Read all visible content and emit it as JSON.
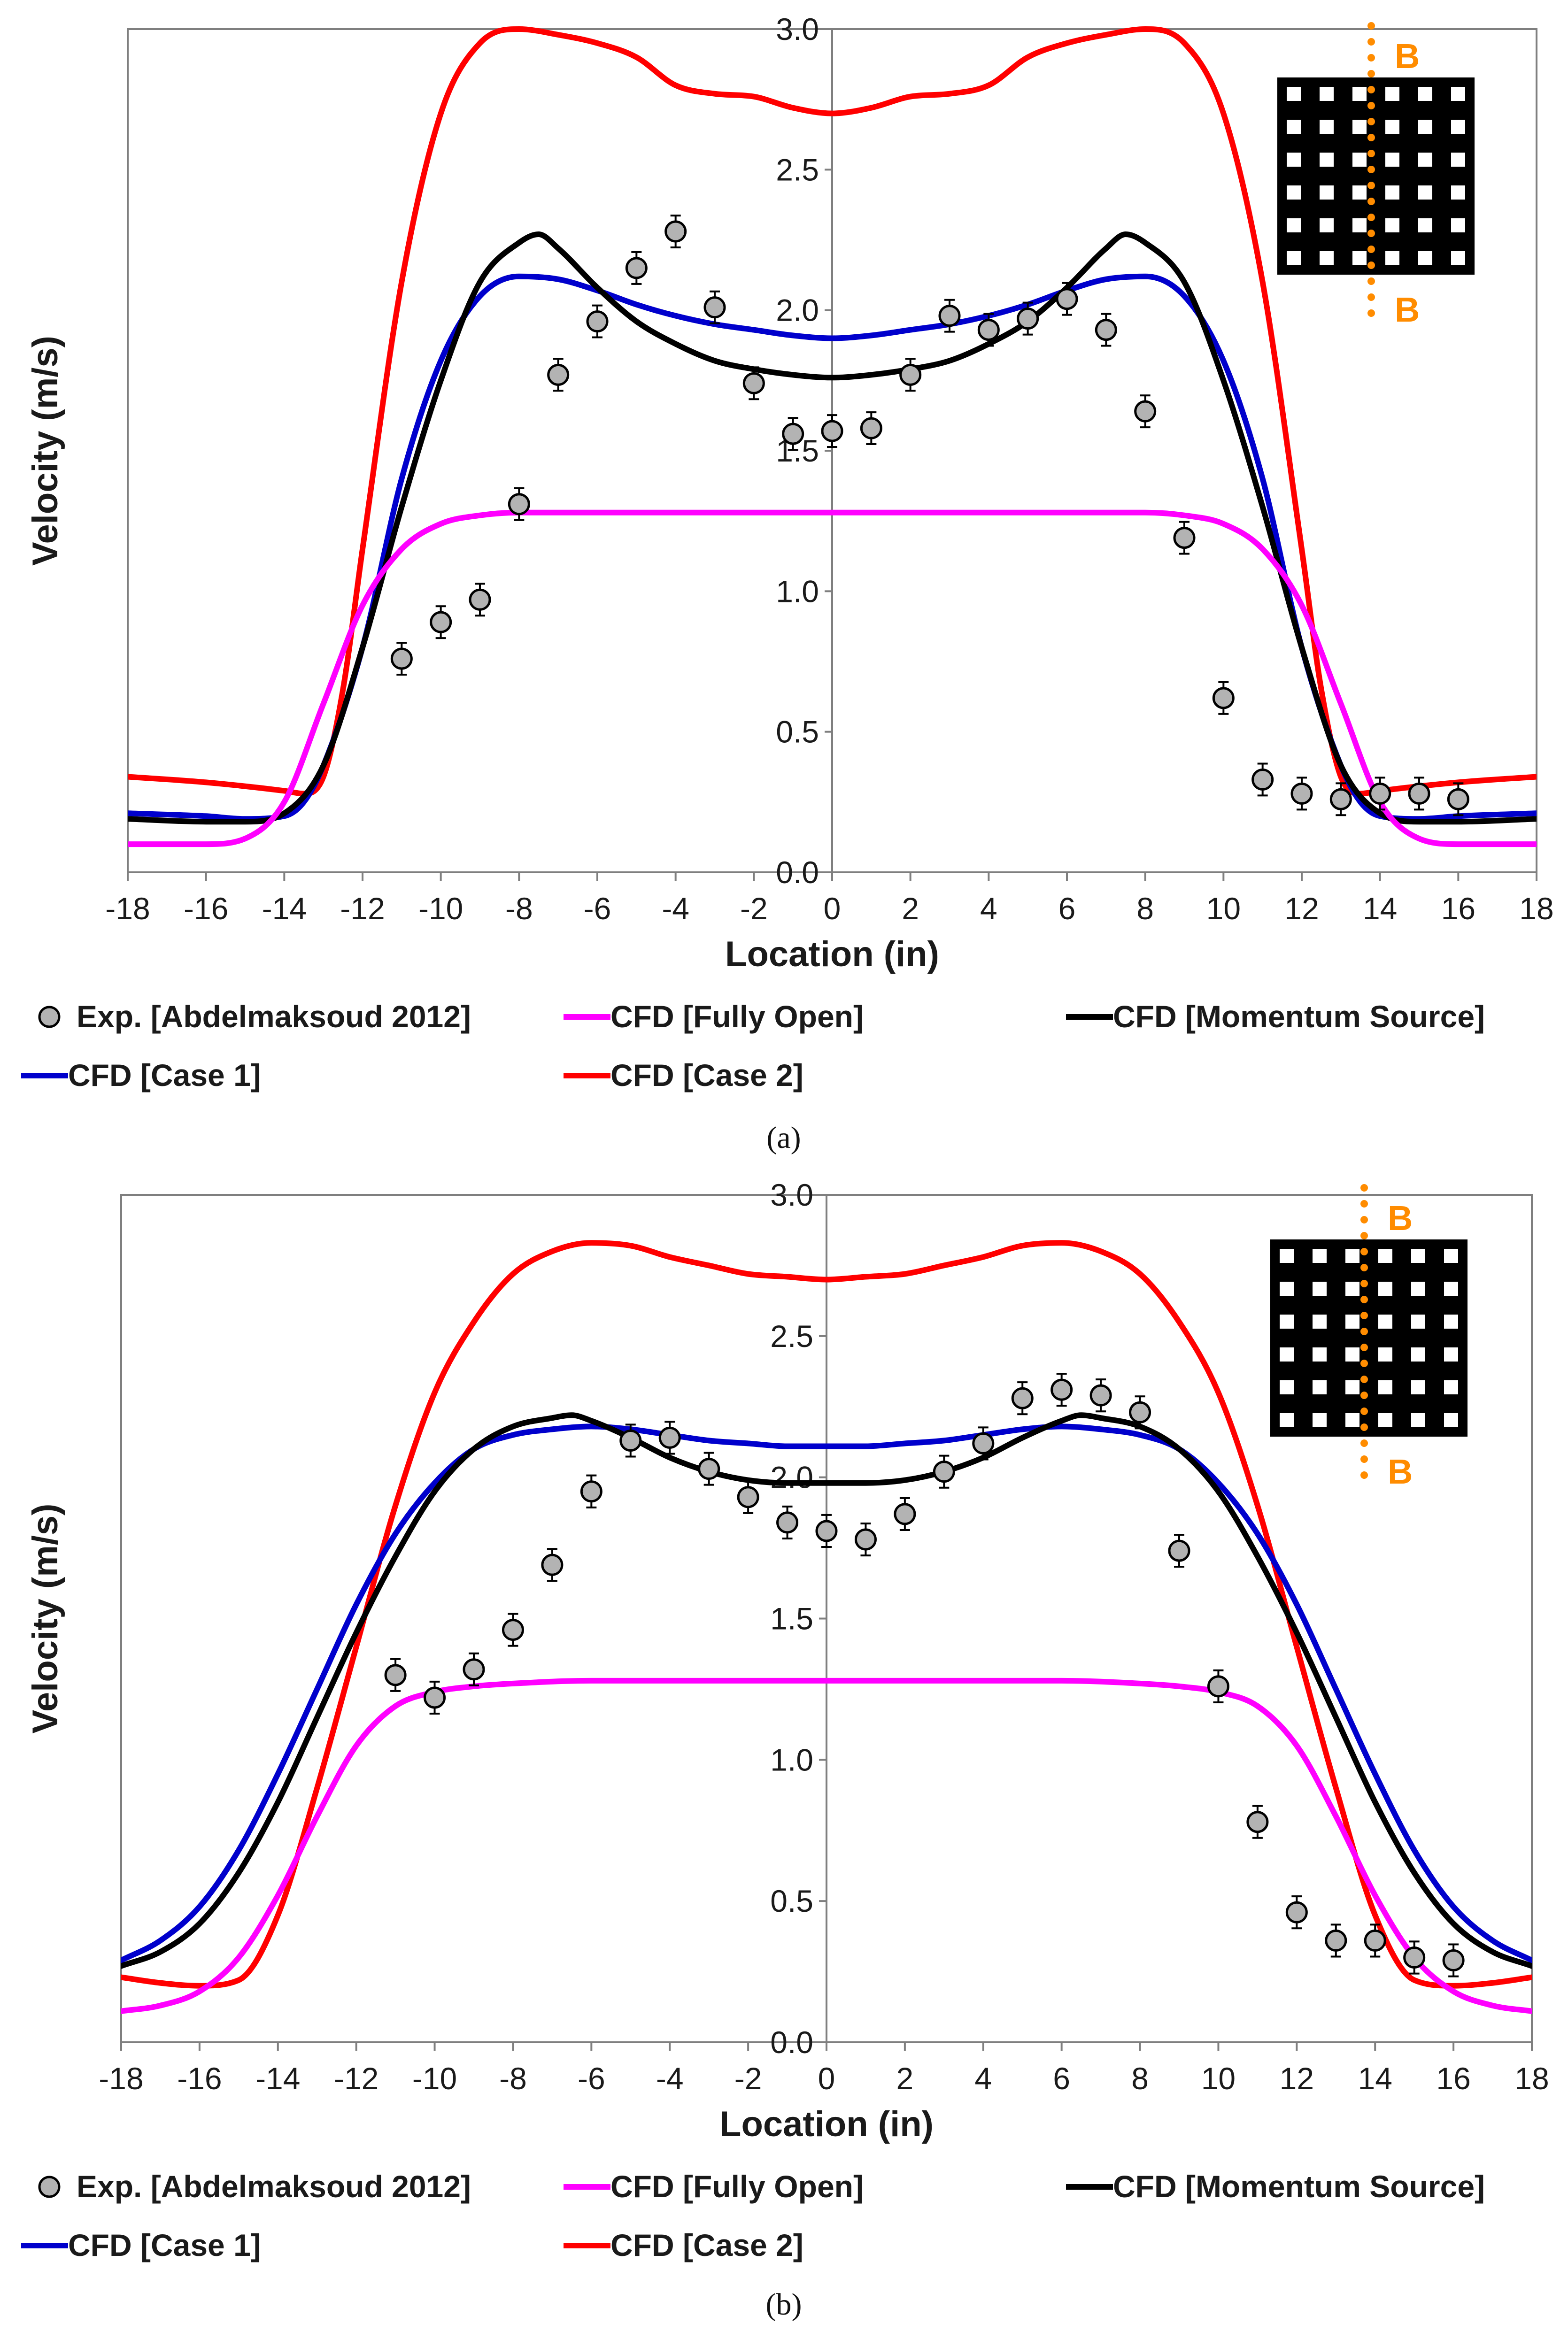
{
  "chart_data": [
    {
      "panel": "(a)",
      "type": "line",
      "xlabel": "Location (in)",
      "ylabel": "Velocity (m/s)",
      "xlim": [
        -18,
        18
      ],
      "ylim": [
        0,
        3
      ],
      "xticks": [
        "-18",
        "-16",
        "-14",
        "-12",
        "-10",
        "-8",
        "-6",
        "-4",
        "-2",
        "0",
        "2",
        "4",
        "6",
        "8",
        "10",
        "12",
        "14",
        "16",
        "18"
      ],
      "yticks": [
        "0.0",
        "0.5",
        "1.0",
        "1.5",
        "2.0",
        "2.5",
        "3.0"
      ],
      "inset_label": "B",
      "legend": [
        {
          "label": "Exp. [Abdelmaksoud 2012]",
          "kind": "marker",
          "color": "#b3b3b3"
        },
        {
          "label": "CFD [Fully Open]",
          "kind": "line",
          "color": "#ff00ff"
        },
        {
          "label": "CFD [Momentum Source]",
          "kind": "line",
          "color": "#000000"
        },
        {
          "label": "CFD [Case 1]",
          "kind": "line",
          "color": "#0000cc"
        },
        {
          "label": "CFD [Case 2]",
          "kind": "line",
          "color": "#ff0000"
        }
      ],
      "series": [
        {
          "name": "CFD [Case 2]",
          "color": "#ff0000",
          "x": [
            -18,
            -16,
            -14,
            -13.5,
            -13,
            -12.5,
            -12,
            -11,
            -10,
            -9,
            -8,
            -7,
            -6,
            -5,
            -4,
            -3,
            -2,
            -1,
            0,
            1,
            2,
            3,
            4,
            5,
            6,
            7,
            8,
            9,
            10,
            11,
            12,
            12.5,
            13,
            13.5,
            14,
            16,
            18
          ],
          "y": [
            0.34,
            0.32,
            0.29,
            0.28,
            0.34,
            0.65,
            1.15,
            2.1,
            2.7,
            2.95,
            3.0,
            2.98,
            2.95,
            2.9,
            2.8,
            2.77,
            2.76,
            2.72,
            2.7,
            2.72,
            2.76,
            2.77,
            2.8,
            2.9,
            2.95,
            2.98,
            3.0,
            2.95,
            2.7,
            2.1,
            1.15,
            0.65,
            0.34,
            0.28,
            0.29,
            0.32,
            0.34
          ]
        },
        {
          "name": "CFD [Case 1]",
          "color": "#0000cc",
          "x": [
            -18,
            -16,
            -15,
            -14,
            -13.5,
            -13,
            -12,
            -11,
            -10,
            -9,
            -8,
            -7,
            -6,
            -5,
            -4,
            -3,
            -2,
            -1,
            0,
            1,
            2,
            3,
            4,
            5,
            6,
            7,
            8,
            9,
            10,
            11,
            12,
            13,
            13.5,
            14,
            15,
            16,
            18
          ],
          "y": [
            0.21,
            0.2,
            0.19,
            0.2,
            0.25,
            0.38,
            0.8,
            1.4,
            1.82,
            2.05,
            2.12,
            2.11,
            2.07,
            2.02,
            1.98,
            1.95,
            1.93,
            1.91,
            1.9,
            1.91,
            1.93,
            1.95,
            1.98,
            2.02,
            2.07,
            2.11,
            2.12,
            2.05,
            1.82,
            1.4,
            0.8,
            0.38,
            0.25,
            0.2,
            0.19,
            0.2,
            0.21
          ]
        },
        {
          "name": "CFD [Momentum Source]",
          "color": "#000000",
          "x": [
            -18,
            -16,
            -15,
            -14,
            -13,
            -12,
            -11,
            -10,
            -9,
            -8,
            -7.5,
            -7,
            -6,
            -5,
            -4,
            -3,
            -2,
            -1,
            0,
            1,
            2,
            3,
            4,
            5,
            6,
            7,
            7.5,
            8,
            9,
            10,
            11,
            12,
            13,
            14,
            15,
            16,
            18
          ],
          "y": [
            0.19,
            0.18,
            0.18,
            0.21,
            0.38,
            0.8,
            1.3,
            1.75,
            2.1,
            2.24,
            2.27,
            2.22,
            2.08,
            1.96,
            1.88,
            1.82,
            1.79,
            1.77,
            1.76,
            1.77,
            1.79,
            1.82,
            1.88,
            1.96,
            2.08,
            2.22,
            2.27,
            2.24,
            2.1,
            1.75,
            1.3,
            0.8,
            0.38,
            0.21,
            0.18,
            0.18,
            0.19
          ]
        },
        {
          "name": "CFD [Fully Open]",
          "color": "#ff00ff",
          "x": [
            -18,
            -16,
            -15,
            -14,
            -13,
            -12,
            -11,
            -10,
            -9,
            -8,
            -6,
            -4,
            -2,
            0,
            2,
            4,
            6,
            8,
            9,
            10,
            11,
            12,
            13,
            14,
            15,
            16,
            18
          ],
          "y": [
            0.1,
            0.1,
            0.12,
            0.25,
            0.6,
            0.95,
            1.15,
            1.24,
            1.27,
            1.28,
            1.28,
            1.28,
            1.28,
            1.28,
            1.28,
            1.28,
            1.28,
            1.28,
            1.27,
            1.24,
            1.15,
            0.95,
            0.6,
            0.25,
            0.12,
            0.1,
            0.1
          ]
        },
        {
          "name": "Exp. [Abdelmaksoud 2012]",
          "color": "#b3b3b3",
          "kind": "scatter",
          "x": [
            -11,
            -10,
            -9,
            -8,
            -7,
            -6,
            -5,
            -4,
            -3,
            -2,
            -1,
            0,
            1,
            2,
            3,
            4,
            5,
            6,
            7,
            8,
            9,
            10,
            11,
            12,
            13,
            14,
            15,
            16
          ],
          "y": [
            0.76,
            0.89,
            0.97,
            1.31,
            1.77,
            1.96,
            2.15,
            2.28,
            2.01,
            1.74,
            1.56,
            1.57,
            1.58,
            1.77,
            1.98,
            1.93,
            1.97,
            2.04,
            1.93,
            1.64,
            1.19,
            0.62,
            0.33,
            0.28,
            0.26,
            0.28,
            0.28,
            0.26
          ],
          "err": 0.04
        }
      ]
    },
    {
      "panel": "(b)",
      "type": "line",
      "xlabel": "Location (in)",
      "ylabel": "Velocity (m/s)",
      "xlim": [
        -18,
        18
      ],
      "ylim": [
        0,
        3
      ],
      "xticks": [
        "-18",
        "-16",
        "-14",
        "-12",
        "-10",
        "-8",
        "-6",
        "-4",
        "-2",
        "0",
        "2",
        "4",
        "6",
        "8",
        "10",
        "12",
        "14",
        "16",
        "18"
      ],
      "yticks": [
        "0.0",
        "0.5",
        "1.0",
        "1.5",
        "2.0",
        "2.5",
        "3.0"
      ],
      "inset_label": "B",
      "legend": [
        {
          "label": "Exp. [Abdelmaksoud 2012]",
          "kind": "marker",
          "color": "#b3b3b3"
        },
        {
          "label": "CFD [Fully Open]",
          "kind": "line",
          "color": "#ff00ff"
        },
        {
          "label": "CFD [Momentum Source]",
          "kind": "line",
          "color": "#000000"
        },
        {
          "label": "CFD [Case 1]",
          "kind": "line",
          "color": "#0000cc"
        },
        {
          "label": "CFD [Case 2]",
          "kind": "line",
          "color": "#ff0000"
        }
      ],
      "series": [
        {
          "name": "CFD [Case 2]",
          "color": "#ff0000",
          "x": [
            -18,
            -17,
            -16,
            -15,
            -14,
            -13,
            -12,
            -11,
            -10,
            -9,
            -8,
            -7,
            -6,
            -5,
            -4,
            -3,
            -2,
            -1,
            0,
            1,
            2,
            3,
            4,
            5,
            6,
            7,
            8,
            9,
            10,
            11,
            12,
            13,
            14,
            15,
            16,
            17,
            18
          ],
          "y": [
            0.23,
            0.21,
            0.2,
            0.22,
            0.45,
            0.9,
            1.4,
            1.9,
            2.3,
            2.55,
            2.72,
            2.8,
            2.83,
            2.82,
            2.78,
            2.75,
            2.72,
            2.71,
            2.7,
            2.71,
            2.72,
            2.75,
            2.78,
            2.82,
            2.83,
            2.8,
            2.72,
            2.55,
            2.3,
            1.9,
            1.4,
            0.9,
            0.45,
            0.22,
            0.2,
            0.21,
            0.23
          ]
        },
        {
          "name": "CFD [Case 1]",
          "color": "#0000cc",
          "x": [
            -18,
            -17,
            -16,
            -15,
            -14,
            -13,
            -12,
            -11,
            -10,
            -9,
            -8,
            -7,
            -6,
            -5,
            -4,
            -3,
            -2,
            -1,
            0,
            1,
            2,
            3,
            4,
            5,
            6,
            7,
            8,
            9,
            10,
            11,
            12,
            13,
            14,
            15,
            16,
            17,
            18
          ],
          "y": [
            0.29,
            0.36,
            0.48,
            0.68,
            0.95,
            1.25,
            1.55,
            1.8,
            1.98,
            2.1,
            2.15,
            2.17,
            2.18,
            2.17,
            2.15,
            2.13,
            2.12,
            2.11,
            2.11,
            2.11,
            2.12,
            2.13,
            2.15,
            2.17,
            2.18,
            2.17,
            2.15,
            2.1,
            1.98,
            1.8,
            1.55,
            1.25,
            0.95,
            0.68,
            0.48,
            0.36,
            0.29
          ]
        },
        {
          "name": "CFD [Momentum Source]",
          "color": "#000000",
          "x": [
            -18,
            -17,
            -16,
            -15,
            -14,
            -13,
            -12,
            -11,
            -10,
            -9,
            -8,
            -7,
            -6.5,
            -6,
            -5,
            -4,
            -3,
            -2,
            -1,
            0,
            1,
            2,
            3,
            4,
            5,
            6,
            6.5,
            7,
            8,
            9,
            10,
            11,
            12,
            13,
            14,
            15,
            16,
            17,
            18
          ],
          "y": [
            0.27,
            0.32,
            0.42,
            0.6,
            0.85,
            1.15,
            1.45,
            1.72,
            1.95,
            2.1,
            2.18,
            2.21,
            2.22,
            2.2,
            2.14,
            2.07,
            2.02,
            1.99,
            1.98,
            1.98,
            1.98,
            1.99,
            2.02,
            2.07,
            2.14,
            2.2,
            2.22,
            2.21,
            2.18,
            2.1,
            1.95,
            1.72,
            1.45,
            1.15,
            0.85,
            0.6,
            0.42,
            0.32,
            0.27
          ]
        },
        {
          "name": "CFD [Fully Open]",
          "color": "#ff00ff",
          "x": [
            -18,
            -17,
            -16,
            -15,
            -14,
            -13,
            -12,
            -11,
            -10,
            -9,
            -8,
            -6,
            -4,
            -2,
            0,
            2,
            4,
            6,
            8,
            9,
            10,
            11,
            12,
            13,
            14,
            15,
            16,
            17,
            18
          ],
          "y": [
            0.11,
            0.13,
            0.18,
            0.3,
            0.52,
            0.8,
            1.05,
            1.19,
            1.24,
            1.26,
            1.27,
            1.28,
            1.28,
            1.28,
            1.28,
            1.28,
            1.28,
            1.28,
            1.27,
            1.26,
            1.24,
            1.19,
            1.05,
            0.8,
            0.52,
            0.3,
            0.18,
            0.13,
            0.11
          ]
        },
        {
          "name": "Exp. [Abdelmaksoud 2012]",
          "color": "#b3b3b3",
          "kind": "scatter",
          "x": [
            -11,
            -10,
            -9,
            -8,
            -7,
            -6,
            -5,
            -4,
            -3,
            -2,
            -1,
            0,
            1,
            2,
            3,
            4,
            5,
            6,
            7,
            8,
            9,
            10,
            11,
            12,
            13,
            14,
            15,
            16
          ],
          "y": [
            1.3,
            1.22,
            1.32,
            1.46,
            1.69,
            1.95,
            2.13,
            2.14,
            2.03,
            1.93,
            1.84,
            1.81,
            1.78,
            1.87,
            2.02,
            2.12,
            2.28,
            2.31,
            2.29,
            2.23,
            1.74,
            1.26,
            0.78,
            0.46,
            0.36,
            0.36,
            0.3,
            0.29
          ],
          "err": 0.04
        }
      ]
    }
  ]
}
